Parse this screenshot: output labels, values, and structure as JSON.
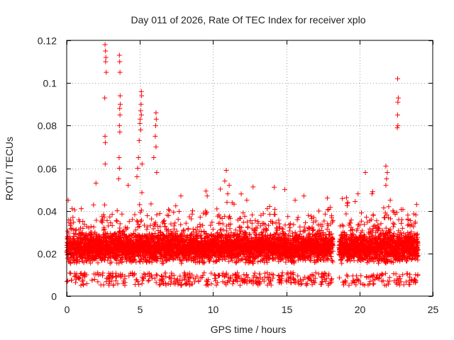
{
  "chart_data": {
    "type": "scatter",
    "title": "Day 011 of 2026, Rate Of TEC Index for receiver xplo",
    "xlabel": "GPS time / hours",
    "ylabel": "ROTI / TECUs",
    "xlim": [
      0,
      25
    ],
    "ylim": [
      0,
      0.12
    ],
    "x_ticks": [
      0,
      5,
      10,
      15,
      20,
      25
    ],
    "x_tick_labels": [
      "0",
      "5",
      "10",
      "15",
      "20",
      "25"
    ],
    "y_ticks": [
      0,
      0.02,
      0.04,
      0.06,
      0.08,
      0.1,
      0.12
    ],
    "y_tick_labels": [
      "0",
      "0.02",
      "0.04",
      "0.06",
      "0.08",
      "0.1",
      "0.12"
    ],
    "grid": true,
    "marker": "+",
    "series_color": "#ff0000",
    "data_gap_hours": [
      18.2,
      18.6
    ],
    "series": [
      {
        "name": "ROTI",
        "typical_band": [
          0.007,
          0.03
        ],
        "notable_points": [
          [
            2.62,
            0.118
          ],
          [
            2.65,
            0.115
          ],
          [
            2.68,
            0.112
          ],
          [
            2.66,
            0.11
          ],
          [
            2.7,
            0.105
          ],
          [
            2.6,
            0.093
          ],
          [
            2.62,
            0.075
          ],
          [
            2.64,
            0.072
          ],
          [
            2.63,
            0.062
          ],
          [
            3.6,
            0.113
          ],
          [
            3.62,
            0.11
          ],
          [
            3.64,
            0.105
          ],
          [
            3.65,
            0.094
          ],
          [
            3.66,
            0.09
          ],
          [
            3.62,
            0.088
          ],
          [
            3.64,
            0.085
          ],
          [
            3.6,
            0.08
          ],
          [
            3.63,
            0.077
          ],
          [
            3.58,
            0.065
          ],
          [
            3.6,
            0.06
          ],
          [
            3.55,
            0.055
          ],
          [
            5.1,
            0.096
          ],
          [
            5.12,
            0.094
          ],
          [
            5.08,
            0.09
          ],
          [
            5.05,
            0.087
          ],
          [
            5.1,
            0.085
          ],
          [
            5.02,
            0.083
          ],
          [
            5.0,
            0.081
          ],
          [
            5.05,
            0.078
          ],
          [
            4.95,
            0.073
          ],
          [
            4.9,
            0.065
          ],
          [
            5.15,
            0.062
          ],
          [
            4.85,
            0.06
          ],
          [
            6.1,
            0.086
          ],
          [
            6.12,
            0.083
          ],
          [
            6.08,
            0.08
          ],
          [
            6.05,
            0.075
          ],
          [
            6.1,
            0.07
          ],
          [
            5.95,
            0.065
          ],
          [
            6.15,
            0.058
          ],
          [
            10.9,
            0.059
          ],
          [
            10.8,
            0.054
          ],
          [
            11.1,
            0.052
          ],
          [
            11.0,
            0.048
          ],
          [
            10.95,
            0.044
          ],
          [
            22.6,
            0.102
          ],
          [
            22.65,
            0.093
          ],
          [
            22.62,
            0.091
          ],
          [
            22.6,
            0.085
          ],
          [
            22.62,
            0.08
          ],
          [
            22.58,
            0.079
          ],
          [
            21.8,
            0.061
          ],
          [
            21.9,
            0.058
          ],
          [
            21.85,
            0.055
          ],
          [
            21.8,
            0.052
          ],
          [
            20.4,
            0.058
          ],
          [
            14.9,
            0.05
          ],
          [
            17.8,
            0.046
          ],
          [
            2.0,
            0.053
          ],
          [
            0.1,
            0.045
          ],
          [
            4.2,
            0.052
          ],
          [
            4.8,
            0.056
          ],
          [
            16.2,
            0.047
          ],
          [
            19.2,
            0.044
          ],
          [
            12.3,
            0.045
          ],
          [
            9.6,
            0.047
          ],
          [
            23.9,
            0.043
          ],
          [
            23.3,
            0.038
          ],
          [
            7.8,
            0.047
          ],
          [
            15.6,
            0.045
          ],
          [
            8.6,
            0.04
          ],
          [
            13.7,
            0.041
          ],
          [
            19.9,
            0.048
          ],
          [
            20.9,
            0.049
          ],
          [
            1.0,
            0.041
          ],
          [
            22.1,
            0.045
          ]
        ]
      }
    ]
  }
}
